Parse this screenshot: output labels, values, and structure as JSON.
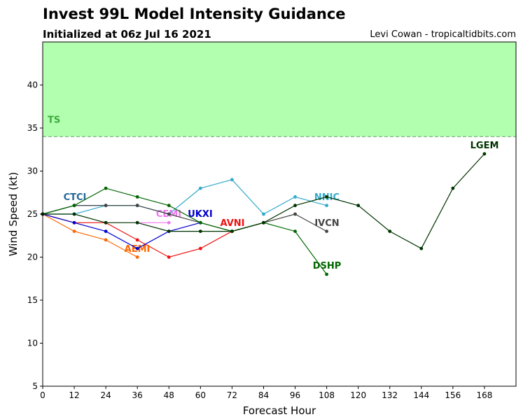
{
  "header": {
    "title": "Invest 99L Model Intensity Guidance",
    "subtitle": "Initialized at 06z Jul 16 2021",
    "credit": "Levi Cowan - tropicaltidbits.com"
  },
  "chart_data": {
    "type": "line",
    "xlabel": "Forecast Hour",
    "ylabel": "Wind Speed (kt)",
    "xlim": [
      0,
      180
    ],
    "ylim": [
      5,
      45
    ],
    "xticks": [
      0,
      12,
      24,
      36,
      48,
      60,
      72,
      84,
      96,
      108,
      120,
      132,
      144,
      156,
      168
    ],
    "yticks": [
      5,
      10,
      15,
      20,
      25,
      30,
      35,
      40
    ],
    "grid": false,
    "band": {
      "label": "TS",
      "from": 34,
      "to": 45,
      "color": "#b3ffb0",
      "line_color": "#6a9a6a",
      "label_color": "#3aaa3a"
    },
    "series": [
      {
        "name": "AVNI",
        "color": "#ee1111",
        "x": [
          0,
          12,
          24,
          36,
          48,
          60,
          72,
          84
        ],
        "y": [
          25,
          24,
          24,
          22,
          20,
          21,
          23,
          24
        ]
      },
      {
        "name": "AEMI",
        "color": "#ff6600",
        "x": [
          0,
          12,
          24,
          36
        ],
        "y": [
          25,
          23,
          22,
          20
        ]
      },
      {
        "name": "CEMI",
        "color": "#ee77ee",
        "x": [
          36,
          48
        ],
        "y": [
          24,
          24
        ]
      },
      {
        "name": "UKXI",
        "color": "#0000cc",
        "x": [
          0,
          12,
          24,
          36,
          48,
          60
        ],
        "y": [
          25,
          24,
          23,
          21,
          23,
          24
        ]
      },
      {
        "name": "CTCI",
        "color": "#226699",
        "x": [
          0,
          12,
          24,
          36
        ],
        "y": [
          25,
          26,
          26,
          26
        ]
      },
      {
        "name": "NNIC",
        "color": "#33aacc",
        "x": [
          0,
          12,
          24,
          36,
          48,
          60,
          72,
          84,
          96,
          108
        ],
        "y": [
          25,
          25,
          26,
          26,
          25,
          28,
          29,
          25,
          27,
          26
        ]
      },
      {
        "name": "IVCN",
        "color": "#444444",
        "x": [
          0,
          12,
          24,
          36,
          48,
          60,
          72,
          84,
          96,
          108
        ],
        "y": [
          25,
          26,
          26,
          26,
          25,
          24,
          23,
          24,
          25,
          23
        ]
      },
      {
        "name": "DSHP",
        "color": "#006600",
        "x": [
          0,
          12,
          24,
          36,
          48,
          60,
          72,
          84,
          96,
          108
        ],
        "y": [
          25,
          26,
          28,
          27,
          26,
          24,
          23,
          24,
          23,
          18
        ]
      },
      {
        "name": "LGEM",
        "color": "#003300",
        "x": [
          0,
          12,
          24,
          36,
          48,
          60,
          72,
          84,
          96,
          108,
          120,
          132,
          144,
          156,
          168
        ],
        "y": [
          25,
          25,
          24,
          24,
          23,
          23,
          23,
          24,
          26,
          27,
          26,
          23,
          21,
          28,
          32
        ]
      }
    ]
  }
}
